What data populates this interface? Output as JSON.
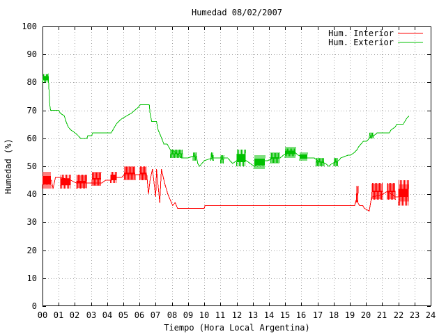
{
  "chart_data": {
    "type": "line",
    "title": "Humedad 08/02/2007",
    "xlabel": "Tiempo (Hora Local Argentina)",
    "ylabel": "Humedad (%)",
    "xlim": [
      0,
      24
    ],
    "ylim": [
      0,
      100
    ],
    "grid": true,
    "legend_position": "top-right",
    "x_ticks": [
      "00",
      "01",
      "02",
      "03",
      "04",
      "05",
      "06",
      "07",
      "08",
      "09",
      "10",
      "11",
      "12",
      "13",
      "14",
      "15",
      "16",
      "17",
      "18",
      "19",
      "20",
      "21",
      "22",
      "23",
      "24"
    ],
    "y_ticks": [
      "0",
      "10",
      "20",
      "30",
      "40",
      "50",
      "60",
      "70",
      "80",
      "90",
      "100"
    ],
    "series": [
      {
        "name": "Hum. Interior",
        "color": "#ff0000",
        "noise": [
          {
            "x0": 0.0,
            "x1": 0.55,
            "lo": 42,
            "hi": 48
          },
          {
            "x0": 1.1,
            "x1": 1.75,
            "lo": 42,
            "hi": 47
          },
          {
            "x0": 2.1,
            "x1": 2.75,
            "lo": 42,
            "hi": 47
          },
          {
            "x0": 3.05,
            "x1": 3.65,
            "lo": 43,
            "hi": 48
          },
          {
            "x0": 4.2,
            "x1": 4.6,
            "lo": 44,
            "hi": 48
          },
          {
            "x0": 5.05,
            "x1": 5.75,
            "lo": 45,
            "hi": 50
          },
          {
            "x0": 6.0,
            "x1": 6.45,
            "lo": 45,
            "hi": 50
          },
          {
            "x0": 19.4,
            "x1": 19.55,
            "lo": 37,
            "hi": 43
          },
          {
            "x0": 20.35,
            "x1": 21.05,
            "lo": 38,
            "hi": 44
          },
          {
            "x0": 21.3,
            "x1": 21.85,
            "lo": 38,
            "hi": 44
          },
          {
            "x0": 22.0,
            "x1": 22.65,
            "lo": 36,
            "hi": 45
          }
        ],
        "points": [
          [
            0.0,
            46
          ],
          [
            0.55,
            45
          ],
          [
            0.65,
            42
          ],
          [
            0.8,
            46
          ],
          [
            1.1,
            46
          ],
          [
            1.75,
            45
          ],
          [
            2.1,
            44
          ],
          [
            2.75,
            44
          ],
          [
            3.05,
            44
          ],
          [
            3.65,
            44
          ],
          [
            3.9,
            45
          ],
          [
            4.2,
            45
          ],
          [
            4.6,
            46
          ],
          [
            4.9,
            46
          ],
          [
            5.05,
            47
          ],
          [
            5.75,
            47
          ],
          [
            6.0,
            47
          ],
          [
            6.45,
            47
          ],
          [
            6.55,
            40
          ],
          [
            6.65,
            45
          ],
          [
            6.8,
            49
          ],
          [
            6.9,
            44
          ],
          [
            7.0,
            39
          ],
          [
            7.05,
            49
          ],
          [
            7.15,
            43
          ],
          [
            7.25,
            37
          ],
          [
            7.35,
            49
          ],
          [
            7.55,
            44
          ],
          [
            7.75,
            40
          ],
          [
            7.9,
            38
          ],
          [
            8.05,
            36
          ],
          [
            8.2,
            37
          ],
          [
            8.35,
            35
          ],
          [
            9.0,
            35
          ],
          [
            10.0,
            35
          ],
          [
            10.05,
            36
          ],
          [
            14.0,
            36
          ],
          [
            16.0,
            36
          ],
          [
            18.0,
            36
          ],
          [
            19.0,
            36
          ],
          [
            19.3,
            36
          ],
          [
            19.4,
            38
          ],
          [
            19.6,
            36
          ],
          [
            19.8,
            36
          ],
          [
            19.9,
            35
          ],
          [
            20.2,
            34
          ],
          [
            20.35,
            39
          ],
          [
            21.05,
            40
          ],
          [
            21.3,
            41
          ],
          [
            21.85,
            39
          ],
          [
            22.0,
            39
          ],
          [
            22.65,
            41
          ]
        ]
      },
      {
        "name": "Hum. Exterior",
        "color": "#00c000",
        "noise": [
          {
            "x0": 0.02,
            "x1": 0.4,
            "lo": 80,
            "hi": 83
          },
          {
            "x0": 7.9,
            "x1": 8.7,
            "lo": 53,
            "hi": 56
          },
          {
            "x0": 9.3,
            "x1": 9.55,
            "lo": 52,
            "hi": 55
          },
          {
            "x0": 10.4,
            "x1": 10.6,
            "lo": 52,
            "hi": 55
          },
          {
            "x0": 11.0,
            "x1": 11.25,
            "lo": 51,
            "hi": 54
          },
          {
            "x0": 12.0,
            "x1": 12.6,
            "lo": 50,
            "hi": 56
          },
          {
            "x0": 13.1,
            "x1": 13.75,
            "lo": 49,
            "hi": 54
          },
          {
            "x0": 14.1,
            "x1": 14.7,
            "lo": 51,
            "hi": 55
          },
          {
            "x0": 15.0,
            "x1": 15.65,
            "lo": 53,
            "hi": 57
          },
          {
            "x0": 15.9,
            "x1": 16.4,
            "lo": 52,
            "hi": 55
          },
          {
            "x0": 16.9,
            "x1": 17.45,
            "lo": 50,
            "hi": 53
          },
          {
            "x0": 18.0,
            "x1": 18.3,
            "lo": 50,
            "hi": 53
          },
          {
            "x0": 20.2,
            "x1": 20.5,
            "lo": 60,
            "hi": 62
          }
        ],
        "points": [
          [
            0.0,
            80
          ],
          [
            0.05,
            82
          ],
          [
            0.2,
            82
          ],
          [
            0.35,
            83
          ],
          [
            0.45,
            72
          ],
          [
            0.5,
            70
          ],
          [
            1.0,
            70
          ],
          [
            1.1,
            69
          ],
          [
            1.35,
            68
          ],
          [
            1.45,
            66
          ],
          [
            1.6,
            64
          ],
          [
            1.75,
            63
          ],
          [
            2.0,
            62
          ],
          [
            2.2,
            61
          ],
          [
            2.35,
            60
          ],
          [
            2.75,
            60
          ],
          [
            2.8,
            61
          ],
          [
            3.05,
            61
          ],
          [
            3.1,
            62
          ],
          [
            4.25,
            62
          ],
          [
            4.35,
            63
          ],
          [
            4.55,
            65
          ],
          [
            4.7,
            66
          ],
          [
            4.9,
            67
          ],
          [
            5.2,
            68
          ],
          [
            5.5,
            69
          ],
          [
            5.7,
            70
          ],
          [
            5.9,
            71
          ],
          [
            6.05,
            72
          ],
          [
            6.6,
            72
          ],
          [
            6.65,
            69
          ],
          [
            6.75,
            66
          ],
          [
            7.05,
            66
          ],
          [
            7.15,
            63
          ],
          [
            7.3,
            61
          ],
          [
            7.5,
            58
          ],
          [
            7.7,
            58
          ],
          [
            7.9,
            56
          ],
          [
            8.2,
            55
          ],
          [
            8.6,
            53
          ],
          [
            9.0,
            53
          ],
          [
            9.5,
            54
          ],
          [
            9.6,
            51
          ],
          [
            9.7,
            50
          ],
          [
            10.0,
            52
          ],
          [
            10.5,
            53
          ],
          [
            10.8,
            53
          ],
          [
            11.2,
            53
          ],
          [
            11.45,
            53
          ],
          [
            11.6,
            52
          ],
          [
            11.75,
            51
          ],
          [
            12.0,
            52
          ],
          [
            12.3,
            53
          ],
          [
            12.6,
            52
          ],
          [
            12.85,
            51
          ],
          [
            13.1,
            50
          ],
          [
            13.4,
            51
          ],
          [
            13.7,
            52
          ],
          [
            13.9,
            52
          ],
          [
            14.3,
            53
          ],
          [
            14.7,
            53
          ],
          [
            14.9,
            54
          ],
          [
            15.3,
            55
          ],
          [
            15.6,
            55
          ],
          [
            15.8,
            54
          ],
          [
            16.2,
            53
          ],
          [
            16.6,
            53
          ],
          [
            16.8,
            53
          ],
          [
            17.0,
            52
          ],
          [
            17.5,
            51
          ],
          [
            17.7,
            50
          ],
          [
            17.9,
            51
          ],
          [
            18.3,
            52
          ],
          [
            18.45,
            53
          ],
          [
            18.9,
            54
          ],
          [
            19.05,
            54
          ],
          [
            19.3,
            55
          ],
          [
            19.45,
            56
          ],
          [
            19.55,
            57
          ],
          [
            19.7,
            58
          ],
          [
            19.85,
            59
          ],
          [
            20.05,
            59
          ],
          [
            20.2,
            60
          ],
          [
            20.5,
            61
          ],
          [
            20.7,
            62
          ],
          [
            21.45,
            62
          ],
          [
            21.55,
            63
          ],
          [
            21.8,
            64
          ],
          [
            21.9,
            65
          ],
          [
            22.3,
            65
          ],
          [
            22.4,
            66
          ],
          [
            22.5,
            67
          ],
          [
            22.65,
            68
          ]
        ]
      }
    ]
  }
}
